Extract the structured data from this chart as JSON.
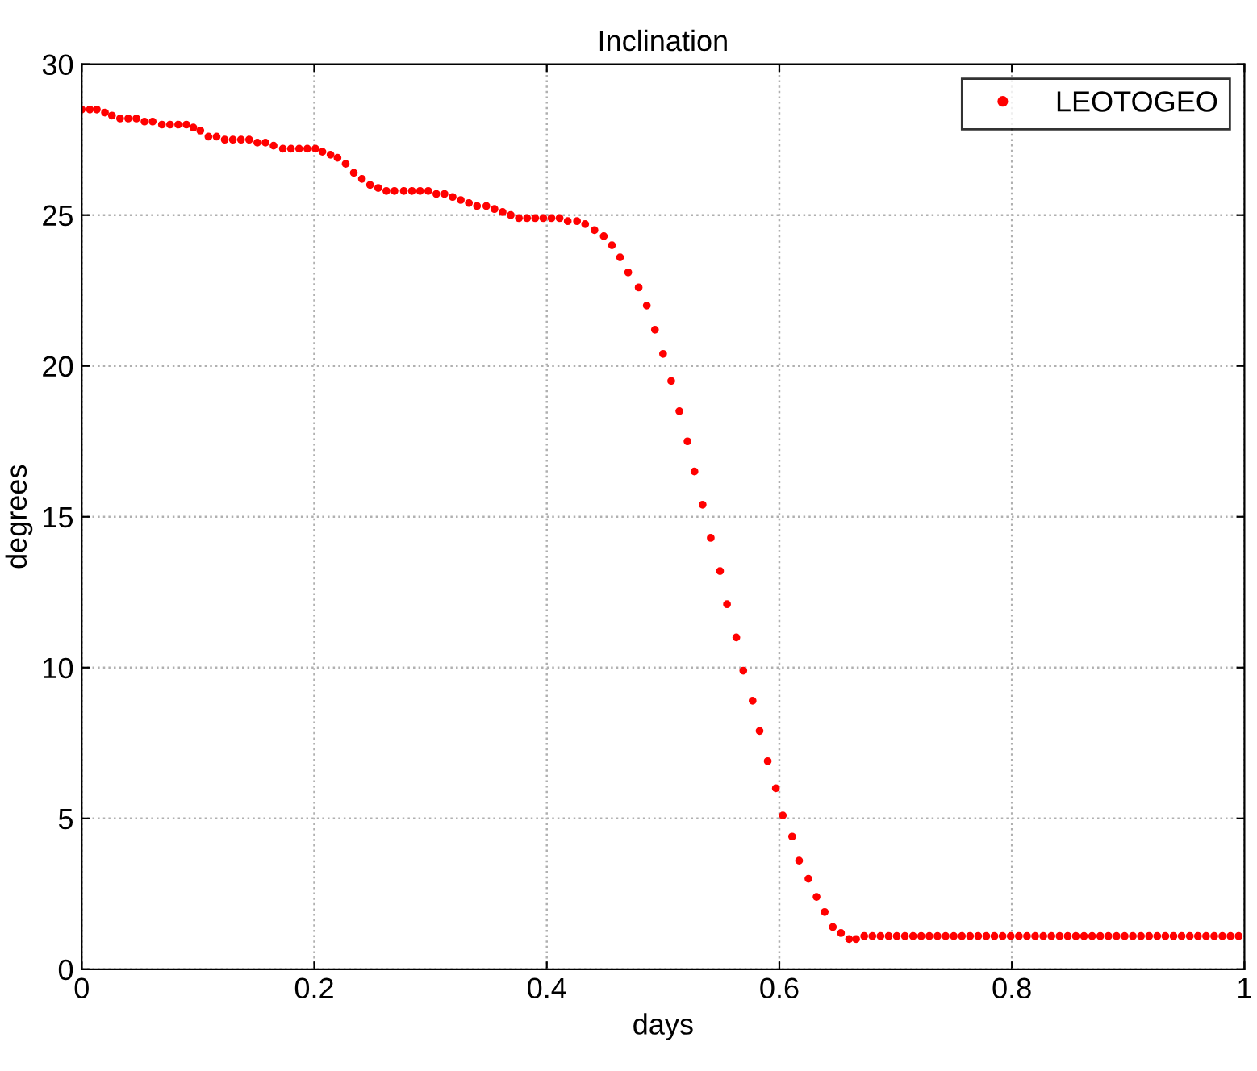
{
  "chart_data": {
    "type": "scatter",
    "title": "Inclination",
    "xlabel": "days",
    "ylabel": "degrees",
    "xlim": [
      0,
      1
    ],
    "ylim": [
      0,
      30
    ],
    "xticks": [
      0,
      0.2,
      0.4,
      0.6,
      0.8,
      1
    ],
    "yticks": [
      0,
      5,
      10,
      15,
      20,
      25,
      30
    ],
    "grid": true,
    "legend": "top right",
    "marker": "circle",
    "series": [
      {
        "name": "LEOTOGEO",
        "color": "#ff0000",
        "x": [
          0,
          0.007,
          0.013,
          0.02,
          0.026,
          0.033,
          0.04,
          0.047,
          0.054,
          0.061,
          0.069,
          0.076,
          0.083,
          0.09,
          0.096,
          0.102,
          0.109,
          0.116,
          0.123,
          0.13,
          0.137,
          0.144,
          0.151,
          0.158,
          0.165,
          0.173,
          0.18,
          0.187,
          0.194,
          0.201,
          0.207,
          0.214,
          0.22,
          0.227,
          0.234,
          0.241,
          0.248,
          0.255,
          0.262,
          0.269,
          0.277,
          0.284,
          0.291,
          0.298,
          0.305,
          0.312,
          0.319,
          0.326,
          0.333,
          0.34,
          0.348,
          0.355,
          0.362,
          0.369,
          0.376,
          0.383,
          0.39,
          0.397,
          0.404,
          0.411,
          0.418,
          0.426,
          0.433,
          0.441,
          0.449,
          0.456,
          0.463,
          0.47,
          0.479,
          0.486,
          0.493,
          0.5,
          0.507,
          0.514,
          0.521,
          0.527,
          0.534,
          0.541,
          0.549,
          0.555,
          0.563,
          0.569,
          0.577,
          0.583,
          0.59,
          0.597,
          0.603,
          0.611,
          0.617,
          0.625,
          0.632,
          0.639,
          0.646,
          0.653,
          0.66,
          0.666,
          0.673,
          0.68,
          0.687,
          0.694,
          0.701,
          0.708,
          0.715,
          0.722,
          0.729,
          0.736,
          0.743,
          0.75,
          0.757,
          0.764,
          0.771,
          0.778,
          0.785,
          0.792,
          0.799,
          0.806,
          0.813,
          0.82,
          0.827,
          0.834,
          0.841,
          0.848,
          0.855,
          0.862,
          0.869,
          0.876,
          0.883,
          0.89,
          0.897,
          0.904,
          0.911,
          0.918,
          0.925,
          0.932,
          0.939,
          0.946,
          0.953,
          0.96,
          0.967,
          0.974,
          0.981,
          0.988,
          0.995
        ],
        "values": [
          28.5,
          28.5,
          28.5,
          28.4,
          28.3,
          28.2,
          28.2,
          28.2,
          28.1,
          28.1,
          28.0,
          28.0,
          28.0,
          28.0,
          27.9,
          27.8,
          27.6,
          27.6,
          27.5,
          27.5,
          27.5,
          27.5,
          27.4,
          27.4,
          27.3,
          27.2,
          27.2,
          27.2,
          27.2,
          27.2,
          27.1,
          27.0,
          26.9,
          26.7,
          26.4,
          26.2,
          26.0,
          25.9,
          25.8,
          25.8,
          25.8,
          25.8,
          25.8,
          25.8,
          25.7,
          25.7,
          25.6,
          25.5,
          25.4,
          25.3,
          25.3,
          25.2,
          25.1,
          25.0,
          24.9,
          24.9,
          24.9,
          24.9,
          24.9,
          24.9,
          24.8,
          24.8,
          24.7,
          24.5,
          24.3,
          24.0,
          23.6,
          23.1,
          22.6,
          22.0,
          21.2,
          20.4,
          19.5,
          18.5,
          17.5,
          16.5,
          15.4,
          14.3,
          13.2,
          12.1,
          11.0,
          9.9,
          8.9,
          7.9,
          6.9,
          6.0,
          5.1,
          4.4,
          3.6,
          3.0,
          2.4,
          1.9,
          1.4,
          1.2,
          1.0,
          1.0,
          1.1,
          1.1,
          1.1,
          1.1,
          1.1,
          1.1,
          1.1,
          1.1,
          1.1,
          1.1,
          1.1,
          1.1,
          1.1,
          1.1,
          1.1,
          1.1,
          1.1,
          1.1,
          1.1,
          1.1,
          1.1,
          1.1,
          1.1,
          1.1,
          1.1,
          1.1,
          1.1,
          1.1,
          1.1,
          1.1,
          1.1,
          1.1,
          1.1,
          1.1,
          1.1,
          1.1,
          1.1,
          1.1,
          1.1,
          1.1,
          1.1,
          1.1,
          1.1,
          1.1,
          1.1,
          1.1,
          1.1
        ]
      }
    ]
  }
}
